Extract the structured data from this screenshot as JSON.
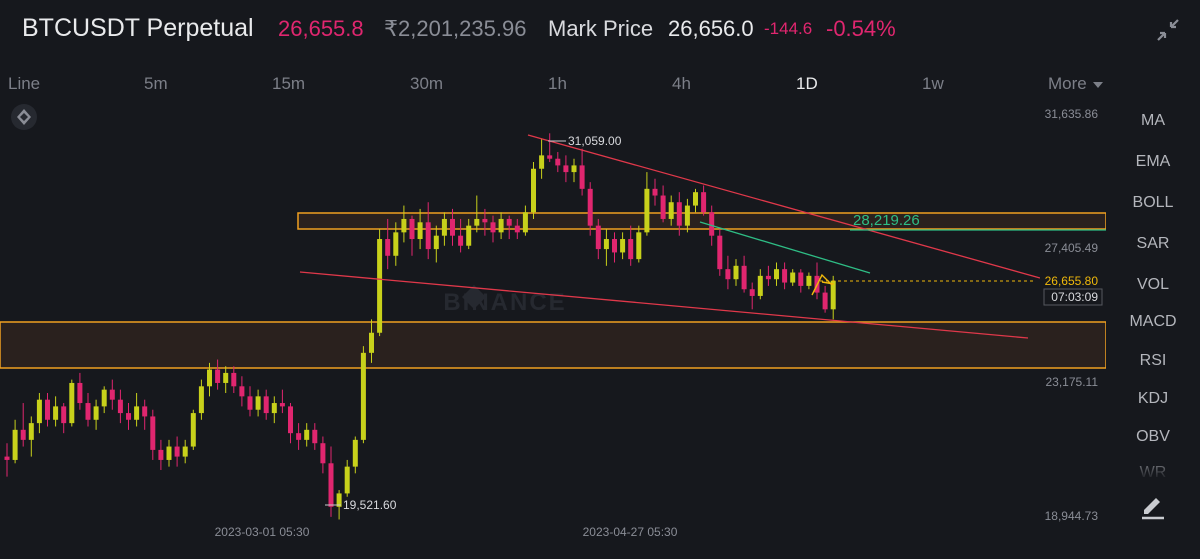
{
  "header": {
    "symbol": "BTCUSDT Perpetual",
    "last_price": "26,655.8",
    "inr_price": "₹2,201,235.96",
    "mark_label": "Mark Price",
    "mark_price": "26,656.0",
    "change": "-144.6",
    "change_pct": "-0.54%",
    "collapse_icon": "collapse-arrows-icon"
  },
  "intervals": [
    "Line",
    "5m",
    "15m",
    "30m",
    "1h",
    "4h",
    "1D",
    "1w"
  ],
  "active_interval": "1D",
  "more_label": "More",
  "indicators": [
    "MA",
    "EMA",
    "BOLL",
    "SAR",
    "VOL",
    "MACD",
    "RSI",
    "KDJ",
    "OBV",
    "WR"
  ],
  "colors": {
    "up": "#c8d11b",
    "down": "#e0266f",
    "zone": "#f0a020",
    "trend": "#e0384a",
    "green_line": "#2ebd85",
    "price_tag": "#f0b90b",
    "background": "#16181d"
  },
  "chart_data": {
    "type": "candlestick",
    "watermark": "BINANCE",
    "y_axis_labels": [
      "31,635.86",
      "27,405.49",
      "23,175.11",
      "18,944.73"
    ],
    "x_axis_labels": [
      "2023-03-01 05:30",
      "2023-04-27 05:30"
    ],
    "high_label": "31,059.00",
    "low_label": "19,521.60",
    "drawn_level_label": "28,219.26",
    "current_price_tag": "26,655.80",
    "countdown_tag": "07:03:09",
    "candles": [
      [
        21400,
        21800,
        20800,
        21300
      ],
      [
        21300,
        22500,
        21200,
        22200
      ],
      [
        22200,
        23000,
        21700,
        21900
      ],
      [
        21900,
        22600,
        21400,
        22400
      ],
      [
        22400,
        23300,
        22100,
        23100
      ],
      [
        23100,
        23300,
        22300,
        22500
      ],
      [
        22500,
        23200,
        22300,
        22900
      ],
      [
        22900,
        23000,
        22100,
        22400
      ],
      [
        22400,
        23700,
        22300,
        23600
      ],
      [
        23600,
        23900,
        22800,
        23000
      ],
      [
        23000,
        23300,
        22300,
        22500
      ],
      [
        22500,
        23100,
        22200,
        22900
      ],
      [
        22900,
        23500,
        22700,
        23400
      ],
      [
        23400,
        23700,
        22800,
        23100
      ],
      [
        23100,
        23400,
        22400,
        22700
      ],
      [
        22700,
        23000,
        22200,
        22500
      ],
      [
        22500,
        23300,
        22300,
        22900
      ],
      [
        22900,
        23100,
        22200,
        22600
      ],
      [
        22600,
        22800,
        21300,
        21600
      ],
      [
        21600,
        21900,
        21000,
        21300
      ],
      [
        21300,
        21900,
        21100,
        21700
      ],
      [
        21700,
        22000,
        21100,
        21400
      ],
      [
        21400,
        21900,
        21200,
        21700
      ],
      [
        21700,
        22800,
        21600,
        22700
      ],
      [
        22700,
        23700,
        22500,
        23500
      ],
      [
        23500,
        24200,
        23200,
        24000
      ],
      [
        24000,
        24300,
        23400,
        23600
      ],
      [
        23600,
        24100,
        23300,
        23900
      ],
      [
        23900,
        24100,
        23300,
        23500
      ],
      [
        23500,
        23800,
        22900,
        23200
      ],
      [
        23200,
        23500,
        22600,
        22800
      ],
      [
        22800,
        23400,
        22600,
        23200
      ],
      [
        23200,
        23400,
        22500,
        22700
      ],
      [
        22700,
        23200,
        22400,
        23000
      ],
      [
        23000,
        23400,
        22700,
        22900
      ],
      [
        22900,
        23000,
        21800,
        22100
      ],
      [
        22100,
        22400,
        21600,
        21900
      ],
      [
        21900,
        22400,
        21700,
        22200
      ],
      [
        22200,
        22400,
        21600,
        21800
      ],
      [
        21800,
        22000,
        20900,
        21200
      ],
      [
        21200,
        21700,
        19600,
        19900
      ],
      [
        19900,
        20400,
        19521.6,
        20300
      ],
      [
        20300,
        21300,
        20200,
        21100
      ],
      [
        21100,
        22000,
        20900,
        21900
      ],
      [
        21900,
        24700,
        21800,
        24500
      ],
      [
        24500,
        25500,
        24200,
        25100
      ],
      [
        25100,
        28200,
        25000,
        27900
      ],
      [
        27900,
        28500,
        27000,
        27400
      ],
      [
        27400,
        28400,
        27100,
        28100
      ],
      [
        28100,
        28900,
        27800,
        28500
      ],
      [
        28500,
        28600,
        27400,
        27900
      ],
      [
        27900,
        28800,
        27600,
        28400
      ],
      [
        28400,
        29000,
        27300,
        27600
      ],
      [
        27600,
        28300,
        27200,
        28000
      ],
      [
        28000,
        28700,
        27700,
        28500
      ],
      [
        28500,
        28800,
        27700,
        28000
      ],
      [
        28000,
        28500,
        27500,
        27700
      ],
      [
        27700,
        28500,
        27600,
        28300
      ],
      [
        28300,
        29200,
        28100,
        28500
      ],
      [
        28500,
        28800,
        28000,
        28400
      ],
      [
        28400,
        28600,
        27800,
        28100
      ],
      [
        28100,
        28700,
        27900,
        28500
      ],
      [
        28500,
        28600,
        27900,
        28300
      ],
      [
        28300,
        28500,
        27900,
        28100
      ],
      [
        28100,
        28900,
        28000,
        28700
      ],
      [
        28700,
        30200,
        28500,
        30000
      ],
      [
        30000,
        30900,
        29700,
        30400
      ],
      [
        30400,
        31059,
        30200,
        30300
      ],
      [
        30300,
        30500,
        29900,
        30100
      ],
      [
        30100,
        30400,
        29600,
        29900
      ],
      [
        29900,
        30300,
        29600,
        30100
      ],
      [
        30100,
        30600,
        29200,
        29400
      ],
      [
        29400,
        29600,
        28000,
        28300
      ],
      [
        28300,
        28500,
        27300,
        27600
      ],
      [
        27600,
        28200,
        27100,
        27900
      ],
      [
        27900,
        28100,
        27200,
        27500
      ],
      [
        27500,
        28100,
        27300,
        27900
      ],
      [
        27900,
        28300,
        27100,
        27300
      ],
      [
        27300,
        28300,
        27200,
        28100
      ],
      [
        28100,
        29900,
        28000,
        29400
      ],
      [
        29400,
        29700,
        28900,
        29200
      ],
      [
        29200,
        29500,
        28400,
        28500
      ],
      [
        28500,
        29200,
        28300,
        29000
      ],
      [
        29000,
        29300,
        28000,
        28300
      ],
      [
        28300,
        29100,
        28100,
        28900
      ],
      [
        28900,
        29400,
        28700,
        29300
      ],
      [
        29300,
        29500,
        28600,
        28700
      ],
      [
        28700,
        28900,
        27700,
        28000
      ],
      [
        28000,
        28200,
        26800,
        27000
      ],
      [
        27000,
        27400,
        26400,
        26700
      ],
      [
        26700,
        27300,
        26500,
        27100
      ],
      [
        27100,
        27400,
        26300,
        26400
      ],
      [
        26400,
        26600,
        25800,
        26200
      ],
      [
        26200,
        27000,
        26100,
        26800
      ],
      [
        26800,
        27100,
        26500,
        26700
      ],
      [
        26700,
        27200,
        26500,
        27000
      ],
      [
        27000,
        27200,
        26400,
        26600
      ],
      [
        26600,
        27000,
        26500,
        26900
      ],
      [
        26900,
        27000,
        26300,
        26500
      ],
      [
        26500,
        26900,
        26400,
        26800
      ],
      [
        26800,
        27200,
        26100,
        26300
      ],
      [
        26300,
        26500,
        25700,
        25800
      ],
      [
        25800,
        26800,
        25500,
        26655.8
      ]
    ],
    "ohlc_fields": [
      "open",
      "high",
      "low",
      "close"
    ]
  }
}
